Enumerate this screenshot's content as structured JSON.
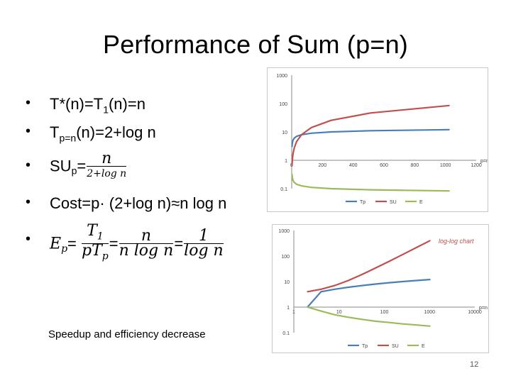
{
  "slide": {
    "title": "Performance of Sum (p=n)",
    "footnote": "Speedup and efficiency decrease",
    "page_number": "12"
  },
  "bullets": {
    "b1": {
      "pre": "T*(n)=T",
      "sub": "1",
      "post": "(n)=n"
    },
    "b2": {
      "pre": "T",
      "sub": "p=n",
      "post": "(n)=2+log n"
    },
    "b3": {
      "pre": "SU",
      "sub": "p",
      "eq": "=",
      "num": "n",
      "den": "2+log n"
    },
    "b4": {
      "text": "Cost=p· (2+log n)≈n log n"
    },
    "b5": {
      "lhs": "E",
      "lhs_sub": "p",
      "eq": "=",
      "f1_num": "T",
      "f1_num_sub": "1",
      "f1_den": "pT",
      "f1_den_sub": "p",
      "f2_num": "n",
      "f2_den": "n log n",
      "f3_num": "1",
      "f3_den": "log n"
    }
  },
  "chart_data": [
    {
      "type": "line",
      "scale": "log-y",
      "xlim": [
        0,
        1200
      ],
      "ylim": [
        0.1,
        1000
      ],
      "x_ticks": [
        "0",
        "200",
        "400",
        "600",
        "800",
        "1000",
        "1200"
      ],
      "y_ticks": [
        "0.1",
        "1",
        "10",
        "100",
        "1000"
      ],
      "x_axis_label": "p=n",
      "legend": [
        "Tp",
        "SU",
        "E"
      ],
      "legend_position": "bottom",
      "colors": {
        "Tp": "#4a7ebb",
        "SU": "#c0504d",
        "E": "#9bbb59"
      },
      "x": [
        2,
        4,
        8,
        16,
        32,
        64,
        128,
        256,
        512,
        1024
      ],
      "series": [
        {
          "name": "Tp",
          "values": [
            3,
            4,
            5,
            6,
            7,
            8,
            9,
            10,
            11,
            12
          ]
        },
        {
          "name": "SU",
          "values": [
            0.67,
            1,
            1.6,
            2.67,
            4.57,
            8,
            14.2,
            25.6,
            46.5,
            85.3
          ]
        },
        {
          "name": "E",
          "values": [
            0.33,
            0.25,
            0.2,
            0.167,
            0.143,
            0.125,
            0.111,
            0.1,
            0.091,
            0.083
          ]
        }
      ]
    },
    {
      "type": "line",
      "scale": "log-log",
      "title": "log-log chart",
      "xlim": [
        1,
        10000
      ],
      "ylim": [
        0.1,
        1000
      ],
      "x_ticks": [
        "1",
        "10",
        "100",
        "1000",
        "10000"
      ],
      "y_ticks": [
        "0.1",
        "1",
        "10",
        "100",
        "1000"
      ],
      "x_axis_label": "p=n",
      "legend": [
        "Tp",
        "SU",
        "E"
      ],
      "legend_position": "bottom",
      "colors": {
        "Tp": "#4a7ebb",
        "SU": "#c0504d",
        "E": "#9bbb59"
      },
      "x": [
        2,
        4,
        8,
        16,
        32,
        64,
        128,
        256,
        512,
        1024
      ],
      "series": [
        {
          "name": "Tp",
          "values": [
            1,
            4,
            5,
            6,
            7,
            8,
            9,
            10,
            11,
            12
          ]
        },
        {
          "name": "SU",
          "values": [
            4,
            5,
            7,
            11,
            19,
            34,
            62,
            115,
            215,
            400
          ]
        },
        {
          "name": "E",
          "values": [
            1,
            0.7,
            0.5,
            0.4,
            0.33,
            0.28,
            0.25,
            0.22,
            0.2,
            0.18
          ]
        }
      ]
    }
  ]
}
